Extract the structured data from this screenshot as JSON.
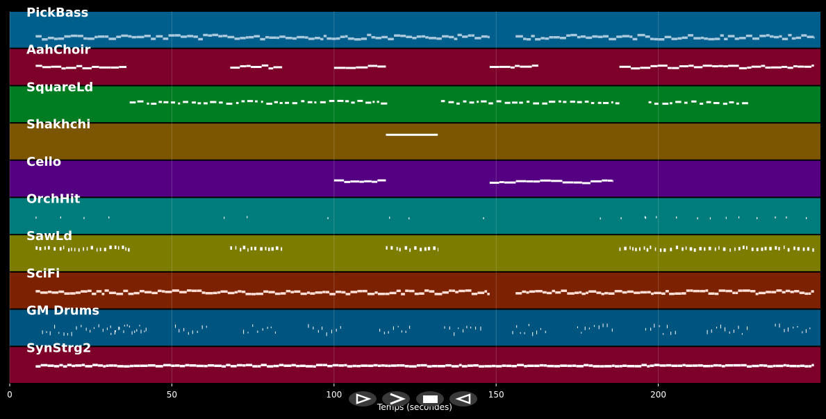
{
  "chart_data": {
    "type": "piano-roll",
    "xlabel": "Temps (secondes)",
    "xlim": [
      0,
      250
    ],
    "xticks": [
      0,
      50,
      100,
      150,
      200
    ],
    "grid": true,
    "tracks": [
      {
        "name": "PickBass",
        "color": "#005f8c",
        "note_color": "#a9c8dc",
        "segments": [
          [
            8,
            148
          ],
          [
            156,
            248
          ]
        ],
        "note_y": 0.7,
        "spread": 0.12,
        "style": "dense-bars"
      },
      {
        "name": "AahChoir",
        "color": "#7c002a",
        "note_color": "#ffffff",
        "segments": [
          [
            8,
            36
          ],
          [
            68,
            84
          ],
          [
            100,
            116
          ],
          [
            148,
            163
          ],
          [
            188,
            248
          ]
        ],
        "note_y": 0.5,
        "spread": 0.08,
        "style": "legato"
      },
      {
        "name": "SquareLd",
        "color": "#007c22",
        "note_color": "#ffffff",
        "segments": [
          [
            37,
            117
          ],
          [
            133,
            188
          ],
          [
            197,
            228
          ]
        ],
        "note_y": 0.45,
        "spread": 0.08,
        "style": "melody"
      },
      {
        "name": "Shakhchi",
        "color": "#7c5500",
        "note_color": "#ffffff",
        "segments": [
          [
            116,
            132
          ]
        ],
        "note_y": 0.32,
        "spread": 0,
        "style": "single"
      },
      {
        "name": "Cello",
        "color": "#550082",
        "note_color": "#ffffff",
        "segments": [
          [
            100,
            116
          ],
          [
            148,
            186
          ]
        ],
        "note_y": 0.58,
        "spread": 0.08,
        "style": "legato"
      },
      {
        "name": "OrchHit",
        "color": "#007c7c",
        "note_color": "#ffffff",
        "segments": [
          [
            8,
            37
          ],
          [
            66,
            76
          ],
          [
            98,
            100
          ],
          [
            117,
            118
          ],
          [
            123,
            124
          ],
          [
            146,
            148
          ],
          [
            182,
            196
          ],
          [
            196,
            248
          ]
        ],
        "note_y": 0.55,
        "spread": 0.04,
        "style": "sparse"
      },
      {
        "name": "SawLd",
        "color": "#7c7c00",
        "note_color": "#ffffff",
        "segments": [
          [
            8,
            37
          ],
          [
            68,
            84
          ],
          [
            116,
            132
          ],
          [
            188,
            248
          ]
        ],
        "note_y": 0.38,
        "spread": 0.08,
        "style": "staccato"
      },
      {
        "name": "SciFi",
        "color": "#7c2200",
        "note_color": "#ffe0d8",
        "segments": [
          [
            8,
            148
          ],
          [
            156,
            248
          ]
        ],
        "note_y": 0.55,
        "spread": 0.1,
        "style": "dense-bars"
      },
      {
        "name": "GM Drums",
        "color": "#005580",
        "note_color": "#ffffff",
        "segments": [
          [
            10,
            42
          ],
          [
            31,
            42
          ],
          [
            51,
            62
          ],
          [
            72,
            82
          ],
          [
            92,
            103
          ],
          [
            114,
            124
          ],
          [
            134,
            146
          ],
          [
            155,
            166
          ],
          [
            175,
            186
          ],
          [
            196,
            206
          ],
          [
            215,
            228
          ],
          [
            236,
            248
          ]
        ],
        "note_y": 0.55,
        "spread": 0.25,
        "style": "drums"
      },
      {
        "name": "SynStrg2",
        "color": "#7c002a",
        "note_color": "#ffffff",
        "segments": [
          [
            8,
            248
          ]
        ],
        "note_y": 0.52,
        "spread": 0.04,
        "style": "dense-bars"
      }
    ]
  },
  "controls": {
    "play_icon": "play-icon",
    "forward_icon": "forward-icon",
    "stop_icon": "stop-icon",
    "back_icon": "back-icon"
  },
  "colors": {
    "background": "#000000",
    "grid": "#ffffff",
    "button": "#3a3a3a"
  }
}
